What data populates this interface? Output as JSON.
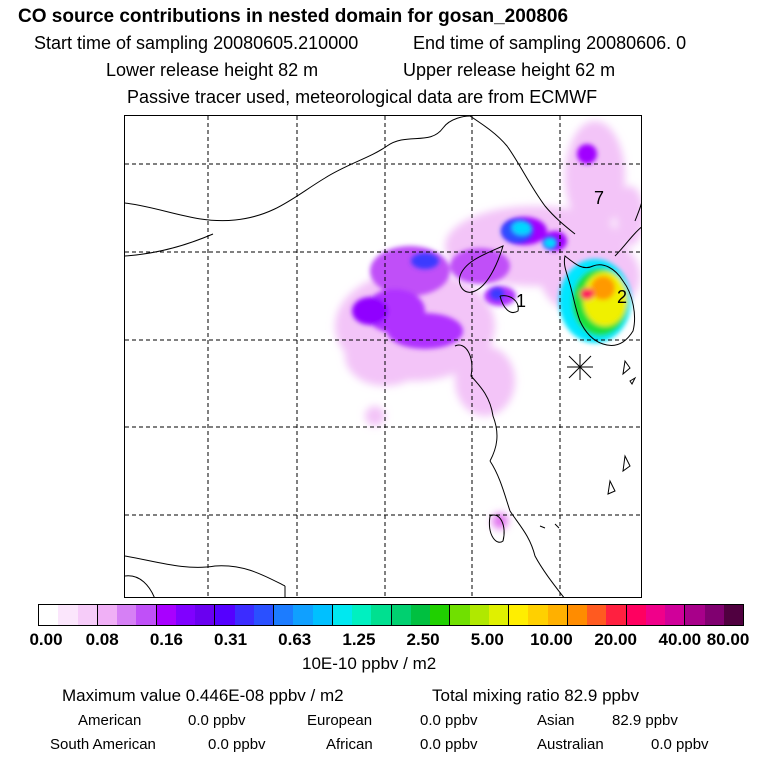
{
  "header": {
    "title": "CO  source contributions in nested domain for gosan_200806",
    "start_time": "Start time of sampling 20080605.210000",
    "end_time": "End time of sampling 20080606.     0",
    "lower_release": "Lower release height   82 m",
    "upper_release": "Upper release height   62 m",
    "note": "Passive tracer used, meteorological data are from ECMWF"
  },
  "map": {
    "labels": [
      "7",
      "2",
      "1"
    ],
    "colors": {
      "light_magenta": "#f3c4f8",
      "violet": "#a100ff",
      "blue": "#3a3aff",
      "cyan": "#00e6ff",
      "green": "#1de03a",
      "yellow": "#f0f000",
      "orange": "#ff9900",
      "red": "#ff2060"
    }
  },
  "colorbar": {
    "ticks": [
      "0.00",
      "0.08",
      "0.16",
      "0.31",
      "0.63",
      "1.25",
      "2.50",
      "5.00",
      "10.00",
      "20.00",
      "40.00",
      "80.00"
    ],
    "unit": "10E-10 ppbv / m2",
    "colors": [
      "#ffffff",
      "#fbe6fc",
      "#f6ccf9",
      "#f0b0f6",
      "#d680f5",
      "#c050f8",
      "#a800ff",
      "#8000ff",
      "#6a00f0",
      "#5500ff",
      "#3c2cff",
      "#2a50ff",
      "#1c7cff",
      "#10a0ff",
      "#00c0ff",
      "#00e8f0",
      "#00f0c0",
      "#00e090",
      "#00d070",
      "#00c040",
      "#20d000",
      "#70e000",
      "#b0e800",
      "#e0f000",
      "#ffee00",
      "#ffd000",
      "#ffb000",
      "#ff8c00",
      "#ff5a20",
      "#ff2040",
      "#ff0060",
      "#f0008a",
      "#d0009a",
      "#a8008a",
      "#800070",
      "#500040"
    ]
  },
  "footer": {
    "max_value": "Maximum value  0.446E-08 ppbv / m2",
    "total_mixing": "Total mixing ratio       82.9 ppbv",
    "american": "American",
    "american_val": "0.0 ppbv",
    "european": "European",
    "european_val": "0.0 ppbv",
    "asian": "Asian",
    "asian_val": "82.9 ppbv",
    "south_american": "South American",
    "south_american_val": "0.0 ppbv",
    "african": "African",
    "african_val": "0.0 ppbv",
    "australian": "Australian",
    "australian_val": "0.0 ppbv"
  }
}
